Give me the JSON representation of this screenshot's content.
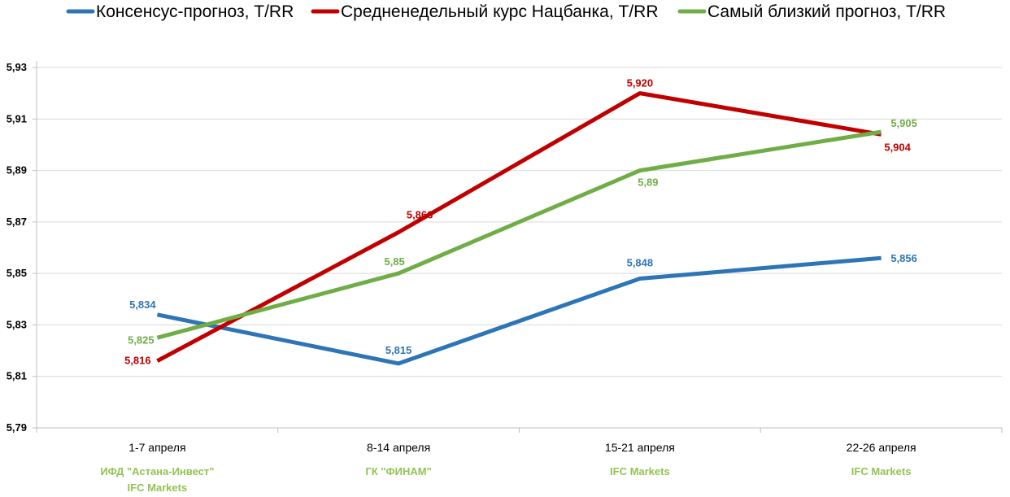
{
  "chart_data": {
    "type": "line",
    "categories": [
      "1-7 апреля",
      "8-14 апреля",
      "15-21 апреля",
      "22-26 апреля"
    ],
    "sublabels": [
      [
        "ИФД \"Астана-Инвест\"",
        "IFC Markets"
      ],
      [
        "ГК \"ФИНАМ\""
      ],
      [
        "IFC Markets"
      ],
      [
        "IFC Markets"
      ]
    ],
    "sublabel_color": "#92c353",
    "series": [
      {
        "name": "Консенсус-прогноз, Т/RR",
        "color": "#2e75b6",
        "values": [
          5.834,
          5.815,
          5.848,
          5.856
        ],
        "labels": [
          "5,834",
          "5,815",
          "5,848",
          "5,856"
        ]
      },
      {
        "name": "Средненедельный курс Нацбанка, Т/RR",
        "color": "#c00000",
        "values": [
          5.816,
          5.866,
          5.92,
          5.904
        ],
        "labels": [
          "5,816",
          "5,866",
          "5,920",
          "5,904"
        ]
      },
      {
        "name": "Самый близкий прогноз, Т/RR",
        "color": "#70ad47",
        "values": [
          5.825,
          5.85,
          5.89,
          5.905
        ],
        "labels": [
          "5,825",
          "5,85",
          "5,89",
          "5,905"
        ]
      }
    ],
    "ylim": [
      5.79,
      5.93
    ],
    "yticks": [
      5.79,
      5.81,
      5.83,
      5.85,
      5.87,
      5.89,
      5.91,
      5.93
    ],
    "ytick_labels": [
      "5,79",
      "5,81",
      "5,83",
      "5,85",
      "5,87",
      "5,89",
      "5,91",
      "5,93"
    ],
    "grid": true,
    "legend": "top"
  }
}
